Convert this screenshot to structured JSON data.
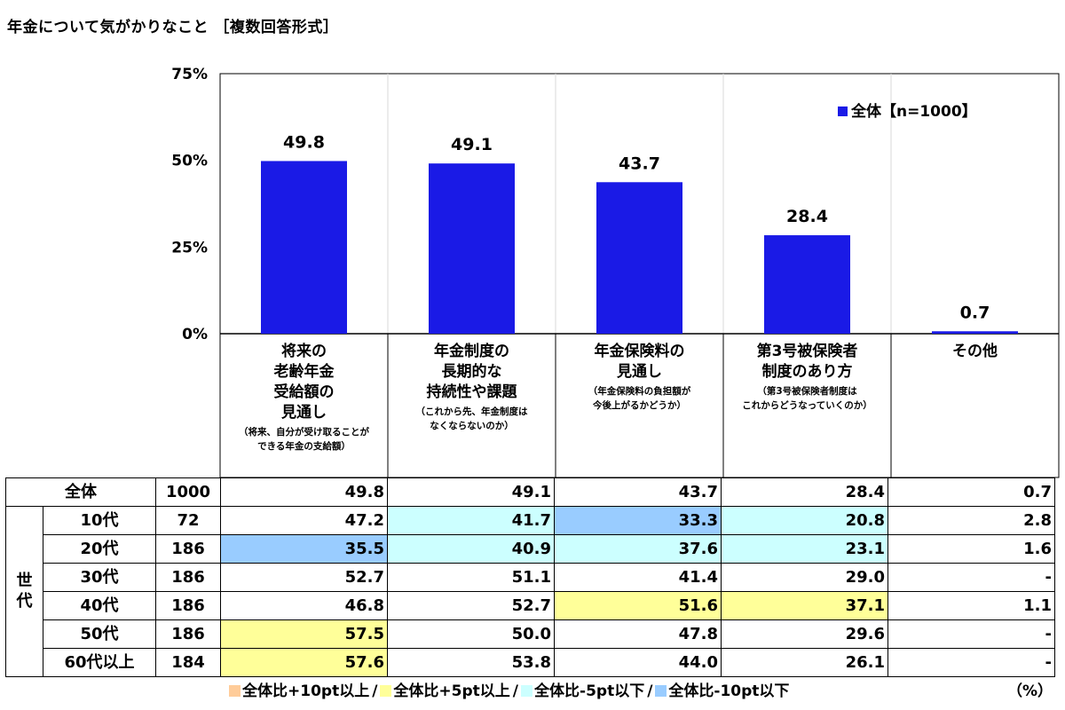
{
  "title": "年金について気がかりなこと ［複数回答形式］",
  "chart_data": {
    "type": "bar",
    "ylim": [
      0,
      75
    ],
    "yticks": [
      "75%",
      "50%",
      "25%",
      "0%"
    ],
    "ytick_values": [
      75,
      50,
      25,
      0
    ],
    "bar_color": "#1a1ae6",
    "legend": "全体【n=1000】",
    "categories": [
      {
        "lines": [
          "将来の",
          "老齢年金",
          "受給額の",
          "見通し"
        ],
        "notes": [
          "（将来、自分が受け取ることが",
          "できる年金の支給額）"
        ]
      },
      {
        "lines": [
          "年金制度の",
          "長期的な",
          "持続性や課題"
        ],
        "notes": [
          "（これから先、年金制度は",
          "なくならないのか）"
        ]
      },
      {
        "lines": [
          "年金保険料の",
          "見通し"
        ],
        "notes": [
          "（年金保険料の負担額が",
          "今後上がるかどうか）"
        ]
      },
      {
        "lines": [
          "第3号被保険者",
          "制度のあり方"
        ],
        "notes": [
          "（第3号被保険者制度は",
          "これからどうなっていくのか）"
        ]
      },
      {
        "lines": [
          "その他"
        ],
        "notes": []
      }
    ],
    "values": [
      49.8,
      49.1,
      43.7,
      28.4,
      0.7
    ],
    "value_labels": [
      "49.8",
      "49.1",
      "43.7",
      "28.4",
      "0.7"
    ]
  },
  "table": {
    "group_label": "世代",
    "rows": [
      {
        "label": "全体",
        "n": "1000",
        "cells": [
          {
            "v": "49.8",
            "c": ""
          },
          {
            "v": "49.1",
            "c": ""
          },
          {
            "v": "43.7",
            "c": ""
          },
          {
            "v": "28.4",
            "c": ""
          },
          {
            "v": "0.7",
            "c": ""
          }
        ]
      },
      {
        "label": "10代",
        "n": "72",
        "cells": [
          {
            "v": "47.2",
            "c": ""
          },
          {
            "v": "41.7",
            "c": "pale-blue"
          },
          {
            "v": "33.3",
            "c": "blue"
          },
          {
            "v": "20.8",
            "c": "pale-blue"
          },
          {
            "v": "2.8",
            "c": ""
          }
        ]
      },
      {
        "label": "20代",
        "n": "186",
        "cells": [
          {
            "v": "35.5",
            "c": "blue"
          },
          {
            "v": "40.9",
            "c": "pale-blue"
          },
          {
            "v": "37.6",
            "c": "pale-blue"
          },
          {
            "v": "23.1",
            "c": "pale-blue"
          },
          {
            "v": "1.6",
            "c": ""
          }
        ]
      },
      {
        "label": "30代",
        "n": "186",
        "cells": [
          {
            "v": "52.7",
            "c": ""
          },
          {
            "v": "51.1",
            "c": ""
          },
          {
            "v": "41.4",
            "c": ""
          },
          {
            "v": "29.0",
            "c": ""
          },
          {
            "v": "-",
            "c": ""
          }
        ]
      },
      {
        "label": "40代",
        "n": "186",
        "cells": [
          {
            "v": "46.8",
            "c": ""
          },
          {
            "v": "52.7",
            "c": ""
          },
          {
            "v": "51.6",
            "c": "yellow"
          },
          {
            "v": "37.1",
            "c": "yellow"
          },
          {
            "v": "1.1",
            "c": ""
          }
        ]
      },
      {
        "label": "50代",
        "n": "186",
        "cells": [
          {
            "v": "57.5",
            "c": "yellow"
          },
          {
            "v": "50.0",
            "c": ""
          },
          {
            "v": "47.8",
            "c": ""
          },
          {
            "v": "29.6",
            "c": ""
          },
          {
            "v": "-",
            "c": ""
          }
        ]
      },
      {
        "label": "60代以上",
        "n": "184",
        "cells": [
          {
            "v": "57.6",
            "c": "yellow"
          },
          {
            "v": "53.8",
            "c": ""
          },
          {
            "v": "44.0",
            "c": ""
          },
          {
            "v": "26.1",
            "c": ""
          },
          {
            "v": "-",
            "c": ""
          }
        ]
      }
    ]
  },
  "colors": {
    "pale-blue": "#ccffff",
    "blue": "#99ccff",
    "yellow": "#ffff99",
    "orange": "#ffcc99"
  },
  "footer": {
    "legend": [
      {
        "color": "#ffcc99",
        "label": "全体比+10pt以上"
      },
      {
        "color": "#ffff99",
        "label": "全体比+5pt以上"
      },
      {
        "color": "#ccffff",
        "label": "全体比-5pt以下"
      },
      {
        "color": "#99ccff",
        "label": "全体比-10pt以下"
      }
    ],
    "unit": "（%）"
  }
}
